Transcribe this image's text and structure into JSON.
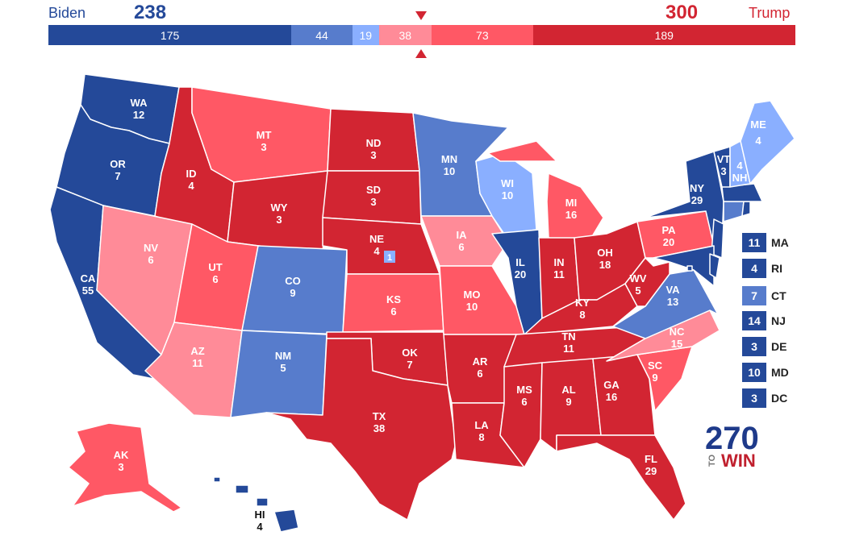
{
  "header": {
    "biden": {
      "name": "Biden",
      "total": "238"
    },
    "trump": {
      "name": "Trump",
      "total": "300"
    }
  },
  "bar_segments": [
    {
      "label": "175",
      "votes": 175,
      "color": "#244999"
    },
    {
      "label": "44",
      "votes": 44,
      "color": "#577ccc"
    },
    {
      "label": "19",
      "votes": 19,
      "color": "#8aafff"
    },
    {
      "label": "38",
      "votes": 38,
      "color": "#ff8b98"
    },
    {
      "label": "73",
      "votes": 73,
      "color": "#ff5865"
    },
    {
      "label": "189",
      "votes": 189,
      "color": "#d22532"
    }
  ],
  "colors": {
    "safe_d": "#244999",
    "likely_d": "#577ccc",
    "lean_d": "#8aafff",
    "lean_r": "#ff8b98",
    "likely_r": "#ff5865",
    "safe_r": "#d22532",
    "biden_text": "#244999",
    "trump_text": "#d22532",
    "marker": "#d22532"
  },
  "states": {
    "WA": {
      "abbr": "WA",
      "ev": "12"
    },
    "OR": {
      "abbr": "OR",
      "ev": "7"
    },
    "CA": {
      "abbr": "CA",
      "ev": "55"
    },
    "ID": {
      "abbr": "ID",
      "ev": "4"
    },
    "NV": {
      "abbr": "NV",
      "ev": "6"
    },
    "MT": {
      "abbr": "MT",
      "ev": "3"
    },
    "WY": {
      "abbr": "WY",
      "ev": "3"
    },
    "UT": {
      "abbr": "UT",
      "ev": "6"
    },
    "AZ": {
      "abbr": "AZ",
      "ev": "11"
    },
    "CO": {
      "abbr": "CO",
      "ev": "9"
    },
    "NM": {
      "abbr": "NM",
      "ev": "5"
    },
    "ND": {
      "abbr": "ND",
      "ev": "3"
    },
    "SD": {
      "abbr": "SD",
      "ev": "3"
    },
    "NE": {
      "abbr": "NE",
      "ev": "4",
      "cd_ev": "1"
    },
    "KS": {
      "abbr": "KS",
      "ev": "6"
    },
    "OK": {
      "abbr": "OK",
      "ev": "7"
    },
    "TX": {
      "abbr": "TX",
      "ev": "38"
    },
    "MN": {
      "abbr": "MN",
      "ev": "10"
    },
    "IA": {
      "abbr": "IA",
      "ev": "6"
    },
    "MO": {
      "abbr": "MO",
      "ev": "10"
    },
    "AR": {
      "abbr": "AR",
      "ev": "6"
    },
    "LA": {
      "abbr": "LA",
      "ev": "8"
    },
    "WI": {
      "abbr": "WI",
      "ev": "10"
    },
    "IL": {
      "abbr": "IL",
      "ev": "20"
    },
    "MI": {
      "abbr": "MI",
      "ev": "16"
    },
    "IN": {
      "abbr": "IN",
      "ev": "11"
    },
    "OH": {
      "abbr": "OH",
      "ev": "18"
    },
    "KY": {
      "abbr": "KY",
      "ev": "8"
    },
    "TN": {
      "abbr": "TN",
      "ev": "11"
    },
    "MS": {
      "abbr": "MS",
      "ev": "6"
    },
    "AL": {
      "abbr": "AL",
      "ev": "9"
    },
    "GA": {
      "abbr": "GA",
      "ev": "16"
    },
    "FL": {
      "abbr": "FL",
      "ev": "29"
    },
    "SC": {
      "abbr": "SC",
      "ev": "9"
    },
    "NC": {
      "abbr": "NC",
      "ev": "15"
    },
    "VA": {
      "abbr": "VA",
      "ev": "13"
    },
    "WV": {
      "abbr": "WV",
      "ev": "5"
    },
    "PA": {
      "abbr": "PA",
      "ev": "20"
    },
    "NY": {
      "abbr": "NY",
      "ev": "29"
    },
    "VT": {
      "abbr": "VT",
      "ev": "3"
    },
    "NH": {
      "abbr": "NH",
      "ev": "4"
    },
    "ME": {
      "abbr": "ME",
      "ev": "4"
    },
    "AK": {
      "abbr": "AK",
      "ev": "3"
    },
    "HI": {
      "abbr": "HI",
      "ev": "4"
    }
  },
  "small_states": [
    {
      "abbr": "MA",
      "ev": "11",
      "color": "#244999"
    },
    {
      "abbr": "RI",
      "ev": "4",
      "color": "#244999"
    },
    {
      "abbr": "CT",
      "ev": "7",
      "color": "#577ccc"
    },
    {
      "abbr": "NJ",
      "ev": "14",
      "color": "#244999"
    },
    {
      "abbr": "DE",
      "ev": "3",
      "color": "#244999"
    },
    {
      "abbr": "MD",
      "ev": "10",
      "color": "#244999"
    },
    {
      "abbr": "DC",
      "ev": "3",
      "color": "#244999"
    }
  ],
  "logo": {
    "number": "270",
    "to": "TO",
    "win": "WIN"
  }
}
